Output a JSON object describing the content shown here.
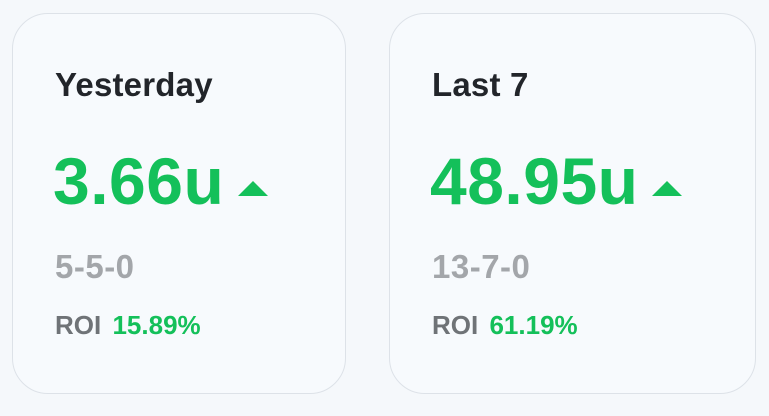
{
  "cards": [
    {
      "title": "Yesterday",
      "units": "3.66u",
      "trend": "up-triangle-icon",
      "record": "5-5-0",
      "roi_label": "ROI",
      "roi_value": "15.89%"
    },
    {
      "title": "Last 7",
      "units": "48.95u",
      "trend": "up-triangle-icon",
      "record": "13-7-0",
      "roi_label": "ROI",
      "roi_value": "61.19%"
    }
  ],
  "colors": {
    "positive": "#14c05a",
    "title": "#22252a",
    "record": "#a3a6aa",
    "roi_label": "#6f7377",
    "card_border": "#dde2e8",
    "background": "#f5f8fb"
  }
}
